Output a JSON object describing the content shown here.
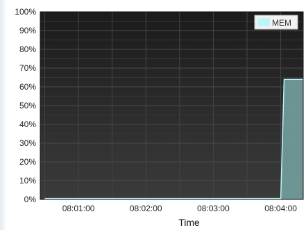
{
  "chart_data": {
    "type": "area",
    "title": "",
    "xlabel": "Time",
    "ylabel": "",
    "x": [
      "08:00:30",
      "08:01:00",
      "08:01:30",
      "08:02:00",
      "08:02:30",
      "08:03:00",
      "08:03:30",
      "08:04:00",
      "08:04:03",
      "08:04:20"
    ],
    "x_tick_labels": [
      "08:01:00",
      "08:02:00",
      "08:03:00",
      "08:04:00"
    ],
    "y_tick_labels": [
      "0%",
      "10%",
      "20%",
      "30%",
      "40%",
      "50%",
      "60%",
      "70%",
      "80%",
      "90%",
      "100%"
    ],
    "ylim": [
      0,
      100
    ],
    "grid": true,
    "legend_position": "top-right",
    "series": [
      {
        "name": "MEM",
        "color": "#bff5f8",
        "fill": "#6f9a98",
        "values": [
          0.5,
          0.5,
          0.5,
          0.5,
          0.5,
          0.5,
          0.5,
          0.5,
          64,
          64
        ]
      }
    ]
  }
}
